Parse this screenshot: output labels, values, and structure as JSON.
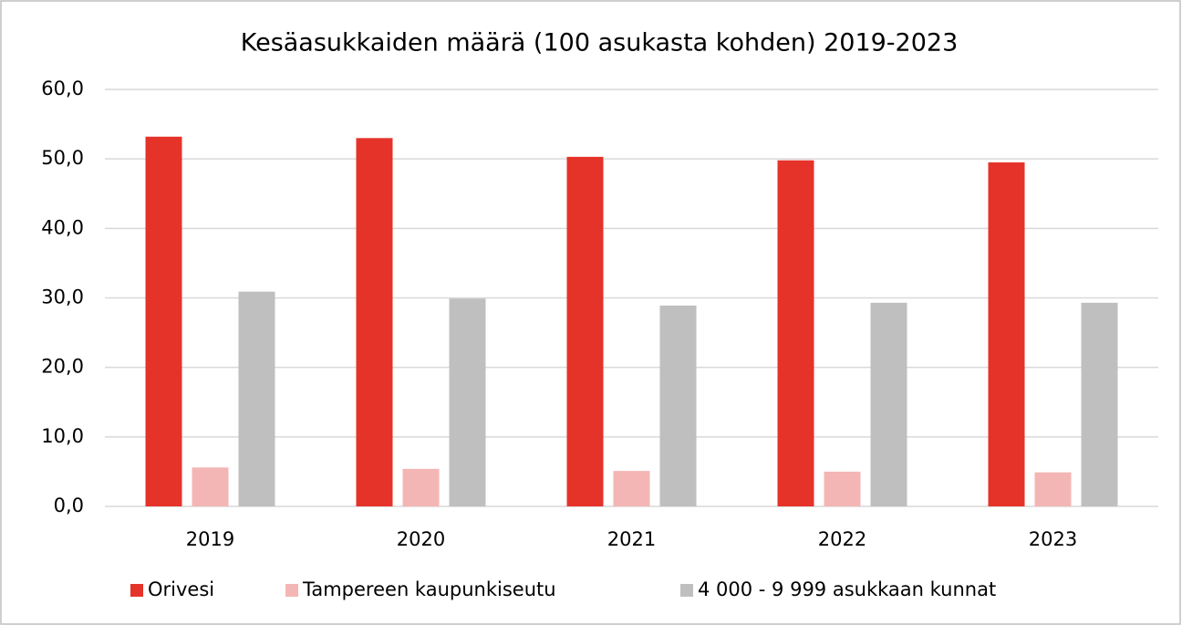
{
  "chart_data": {
    "type": "bar",
    "title": "Kesäasukkaiden määrä (100 asukasta kohden) 2019-2023",
    "categories": [
      "2019",
      "2020",
      "2021",
      "2022",
      "2023"
    ],
    "series": [
      {
        "name": "Orivesi",
        "color": "#e5332a",
        "values": [
          53.2,
          53.0,
          50.3,
          49.8,
          49.5
        ]
      },
      {
        "name": "Tampereen kaupunkiseutu",
        "color": "#f4b6b4",
        "values": [
          5.6,
          5.4,
          5.1,
          5.0,
          4.9
        ]
      },
      {
        "name": "4 000 - 9 999 asukkaan kunnat",
        "color": "#bfbfbf",
        "values": [
          30.9,
          29.9,
          28.9,
          29.3,
          29.3
        ]
      }
    ],
    "ylim": [
      0,
      60
    ],
    "yticks": [
      {
        "value": 0,
        "label": "0,0"
      },
      {
        "value": 10,
        "label": "10,0"
      },
      {
        "value": 20,
        "label": "20,0"
      },
      {
        "value": 30,
        "label": "30,0"
      },
      {
        "value": 40,
        "label": "40,0"
      },
      {
        "value": 50,
        "label": "50,0"
      },
      {
        "value": 60,
        "label": "60,0"
      }
    ],
    "grid": true,
    "legend": "bottom"
  }
}
